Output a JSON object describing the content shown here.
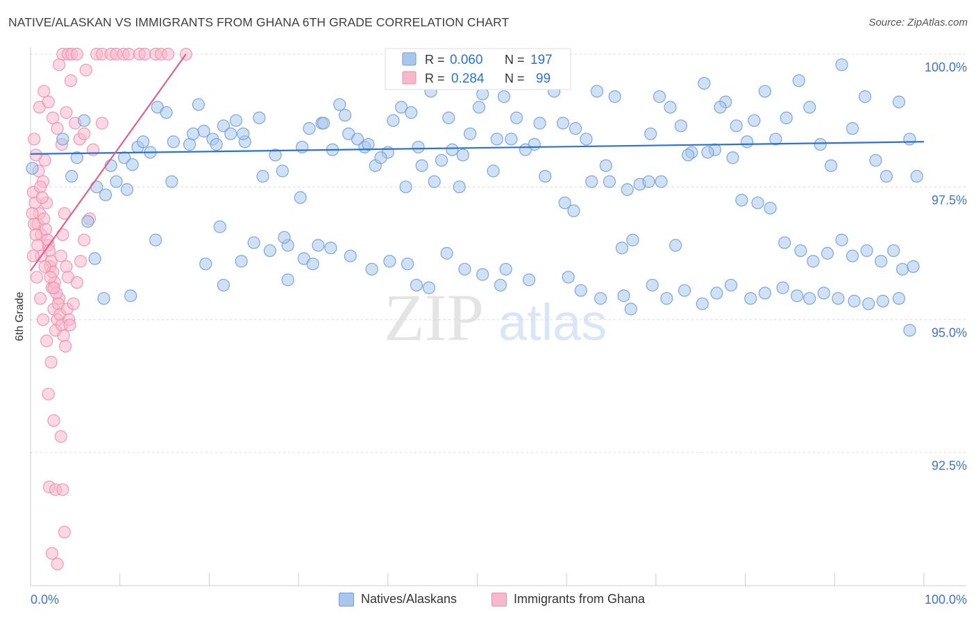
{
  "title": "NATIVE/ALASKAN VS IMMIGRANTS FROM GHANA 6TH GRADE CORRELATION CHART",
  "source": "Source: ZipAtlas.com",
  "watermark": {
    "zip": "ZIP",
    "atlas": "atlas"
  },
  "legend": {
    "r_label": "R =",
    "n_label": "N =",
    "rows": [
      {
        "r": "0.060",
        "n": "197"
      },
      {
        "r": "0.284",
        "n": "99"
      }
    ]
  },
  "bottom_legend": [
    "Natives/Alaskans",
    "Immigrants from Ghana"
  ],
  "colors": {
    "blue_fill": "#a9c6ec",
    "blue_stroke": "#6f9fd8",
    "blue_line": "#2a72d0",
    "pink_fill": "#f7b8cc",
    "pink_stroke": "#ec8fad",
    "pink_line": "#e0608c",
    "tick_label": "#3f74c9",
    "grid": "#d8d8d8",
    "legend_value": "#2a72d0"
  },
  "chart_data": {
    "type": "scatter",
    "title": "NATIVE/ALASKAN VS IMMIGRANTS FROM GHANA 6TH GRADE CORRELATION CHART",
    "xlabel": "",
    "ylabel": "6th Grade",
    "xlim": [
      0,
      100
    ],
    "ylim": [
      90.0,
      100.35
    ],
    "x_tick_labels": [
      "0.0%",
      "100.0%"
    ],
    "y_ticks": [
      100.0,
      97.5,
      95.0,
      92.5
    ],
    "y_tick_labels": [
      "100.0%",
      "97.5%",
      "95.0%",
      "92.5%"
    ],
    "grid": true,
    "series": [
      {
        "name": "Natives/Alaskans",
        "R": 0.06,
        "N": 197,
        "trend": {
          "x": [
            0,
            100
          ],
          "y": [
            98.12,
            98.35
          ]
        },
        "points": [
          [
            0.2,
            97.85
          ],
          [
            6,
            98.75
          ],
          [
            9,
            97.9
          ],
          [
            10.5,
            98.05
          ],
          [
            11.4,
            97.92
          ],
          [
            12,
            98.25
          ],
          [
            12.6,
            98.35
          ],
          [
            14.2,
            99.0
          ],
          [
            15.2,
            98.9
          ],
          [
            16,
            98.35
          ],
          [
            17.8,
            98.3
          ],
          [
            18.8,
            99.05
          ],
          [
            19.4,
            98.55
          ],
          [
            20.4,
            98.4
          ],
          [
            21.6,
            98.65
          ],
          [
            22.4,
            98.5
          ],
          [
            23,
            98.75
          ],
          [
            24,
            98.35
          ],
          [
            25.6,
            98.8
          ],
          [
            27.4,
            98.1
          ],
          [
            28.2,
            97.8
          ],
          [
            30.4,
            98.25
          ],
          [
            31.2,
            98.6
          ],
          [
            32.6,
            98.7
          ],
          [
            34.6,
            99.05
          ],
          [
            35.6,
            98.5
          ],
          [
            36.6,
            98.4
          ],
          [
            37.4,
            98.25
          ],
          [
            38.6,
            97.9
          ],
          [
            40,
            98.15
          ],
          [
            41.5,
            99.0
          ],
          [
            42.6,
            98.9
          ],
          [
            43.4,
            98.25
          ],
          [
            44.8,
            99.3
          ],
          [
            46,
            98.0
          ],
          [
            47.2,
            98.2
          ],
          [
            48,
            97.5
          ],
          [
            49.2,
            98.5
          ],
          [
            50.6,
            99.25
          ],
          [
            51.2,
            99.45
          ],
          [
            52.2,
            98.4
          ],
          [
            53,
            99.2
          ],
          [
            54.4,
            98.8
          ],
          [
            55.2,
            99.7
          ],
          [
            56.4,
            98.3
          ],
          [
            57,
            98.7
          ],
          [
            58.6,
            99.3
          ],
          [
            59.6,
            98.7
          ],
          [
            61,
            98.6
          ],
          [
            62.2,
            98.4
          ],
          [
            63.4,
            99.3
          ],
          [
            64.4,
            97.9
          ],
          [
            65.4,
            99.2
          ],
          [
            66.8,
            97.45
          ],
          [
            68.2,
            97.55
          ],
          [
            69.4,
            98.5
          ],
          [
            70.4,
            99.2
          ],
          [
            71.6,
            99.0
          ],
          [
            72.8,
            98.65
          ],
          [
            74,
            98.15
          ],
          [
            75.4,
            99.45
          ],
          [
            76.6,
            98.2
          ],
          [
            77.8,
            99.1
          ],
          [
            79,
            98.65
          ],
          [
            80.2,
            98.35
          ],
          [
            81,
            98.75
          ],
          [
            82.2,
            99.3
          ],
          [
            83.4,
            98.4
          ],
          [
            84.6,
            98.8
          ],
          [
            86,
            99.5
          ],
          [
            87.2,
            99.0
          ],
          [
            88.4,
            98.3
          ],
          [
            89.6,
            97.9
          ],
          [
            90.8,
            99.8
          ],
          [
            92,
            98.6
          ],
          [
            93.4,
            99.2
          ],
          [
            94.6,
            98.0
          ],
          [
            95.8,
            97.7
          ],
          [
            97.2,
            99.1
          ],
          [
            98.4,
            98.4
          ],
          [
            99.2,
            97.7
          ],
          [
            3.6,
            98.4
          ],
          [
            4.6,
            97.7
          ],
          [
            5.2,
            98.05
          ],
          [
            7.4,
            97.5
          ],
          [
            8.4,
            97.35
          ],
          [
            9.6,
            97.6
          ],
          [
            10.8,
            97.45
          ],
          [
            13.4,
            98.15
          ],
          [
            15.8,
            97.6
          ],
          [
            18.2,
            98.5
          ],
          [
            20.8,
            98.3
          ],
          [
            23.8,
            98.5
          ],
          [
            26,
            97.7
          ],
          [
            28.8,
            96.4
          ],
          [
            30.2,
            97.3
          ],
          [
            32.8,
            98.7
          ],
          [
            33.8,
            98.2
          ],
          [
            35.2,
            98.85
          ],
          [
            37.8,
            98.3
          ],
          [
            39.2,
            98.05
          ],
          [
            40.6,
            98.75
          ],
          [
            42,
            97.5
          ],
          [
            43.8,
            97.9
          ],
          [
            45.2,
            97.6
          ],
          [
            46.8,
            98.8
          ],
          [
            48.4,
            98.1
          ],
          [
            50.2,
            99.0
          ],
          [
            51.8,
            97.8
          ],
          [
            53.8,
            98.4
          ],
          [
            55.4,
            98.2
          ],
          [
            57.6,
            97.7
          ],
          [
            59.8,
            97.2
          ],
          [
            60.8,
            97.05
          ],
          [
            62.8,
            97.6
          ],
          [
            64.8,
            97.6
          ],
          [
            66.2,
            96.35
          ],
          [
            67.4,
            96.5
          ],
          [
            69.2,
            97.6
          ],
          [
            70.6,
            97.6
          ],
          [
            72.2,
            96.4
          ],
          [
            73.6,
            98.1
          ],
          [
            75.8,
            98.15
          ],
          [
            77.2,
            99.0
          ],
          [
            78.6,
            98.05
          ],
          [
            79.6,
            97.25
          ],
          [
            81.4,
            97.2
          ],
          [
            82.8,
            97.1
          ],
          [
            84.4,
            96.45
          ],
          [
            86.2,
            96.3
          ],
          [
            87.6,
            96.1
          ],
          [
            89.2,
            96.25
          ],
          [
            90.8,
            96.5
          ],
          [
            92,
            96.2
          ],
          [
            93.6,
            96.3
          ],
          [
            95.2,
            96.1
          ],
          [
            96.6,
            96.3
          ],
          [
            97.6,
            95.95
          ],
          [
            98.8,
            96.0
          ],
          [
            6.4,
            96.85
          ],
          [
            7.2,
            96.15
          ],
          [
            8.2,
            95.4
          ],
          [
            11.2,
            95.45
          ],
          [
            14,
            96.5
          ],
          [
            19.6,
            96.05
          ],
          [
            21.2,
            96.75
          ],
          [
            23.6,
            96.1
          ],
          [
            25,
            96.45
          ],
          [
            26.8,
            96.3
          ],
          [
            28.4,
            96.55
          ],
          [
            30.6,
            96.15
          ],
          [
            32.2,
            96.4
          ],
          [
            33.6,
            96.35
          ],
          [
            43.2,
            95.65
          ],
          [
            44.6,
            95.6
          ],
          [
            52.6,
            95.65
          ],
          [
            55.8,
            95.75
          ],
          [
            60.2,
            95.8
          ],
          [
            61.6,
            95.55
          ],
          [
            63.8,
            95.4
          ],
          [
            66.4,
            95.45
          ],
          [
            67.2,
            95.2
          ],
          [
            69.6,
            95.65
          ],
          [
            71.2,
            95.4
          ],
          [
            73.2,
            95.55
          ],
          [
            75.2,
            95.3
          ],
          [
            76.8,
            95.5
          ],
          [
            78.4,
            95.65
          ],
          [
            80.6,
            95.4
          ],
          [
            82.2,
            95.5
          ],
          [
            84.2,
            95.6
          ],
          [
            85.8,
            95.45
          ],
          [
            87.2,
            95.4
          ],
          [
            88.8,
            95.5
          ],
          [
            90.4,
            95.4
          ],
          [
            92.2,
            95.35
          ],
          [
            93.8,
            95.3
          ],
          [
            95.4,
            95.35
          ],
          [
            97.2,
            95.4
          ],
          [
            98.4,
            94.8
          ],
          [
            21.6,
            95.65
          ],
          [
            28.8,
            95.75
          ],
          [
            31.6,
            96.05
          ],
          [
            35.8,
            96.2
          ],
          [
            38.2,
            95.95
          ],
          [
            40.2,
            96.1
          ],
          [
            42.2,
            96.05
          ],
          [
            46.6,
            96.25
          ],
          [
            48.6,
            95.95
          ],
          [
            50.6,
            95.85
          ],
          [
            53.2,
            95.95
          ]
        ]
      },
      {
        "name": "Immigrants from Ghana",
        "R": 0.284,
        "N": 99,
        "trend": {
          "x": [
            0,
            17.4
          ],
          "y": [
            95.92,
            100.0
          ]
        },
        "points": [
          [
            0.3,
            97.4
          ],
          [
            0.5,
            97.2
          ],
          [
            0.8,
            96.8
          ],
          [
            1.0,
            97.0
          ],
          [
            1.2,
            96.6
          ],
          [
            1.4,
            97.6
          ],
          [
            1.6,
            98.0
          ],
          [
            1.8,
            97.2
          ],
          [
            2.0,
            96.4
          ],
          [
            2.2,
            96.0
          ],
          [
            2.4,
            95.6
          ],
          [
            2.6,
            95.2
          ],
          [
            2.8,
            94.8
          ],
          [
            3.0,
            95.0
          ],
          [
            3.2,
            95.4
          ],
          [
            3.4,
            96.2
          ],
          [
            3.6,
            96.6
          ],
          [
            3.8,
            97.0
          ],
          [
            4.0,
            96.0
          ],
          [
            4.2,
            95.8
          ],
          [
            0.4,
            98.4
          ],
          [
            0.6,
            98.1
          ],
          [
            0.9,
            97.8
          ],
          [
            1.1,
            97.5
          ],
          [
            1.3,
            97.3
          ],
          [
            1.5,
            96.9
          ],
          [
            1.7,
            96.7
          ],
          [
            1.9,
            96.5
          ],
          [
            2.1,
            96.3
          ],
          [
            2.3,
            96.1
          ],
          [
            2.5,
            95.9
          ],
          [
            2.7,
            95.7
          ],
          [
            2.9,
            95.5
          ],
          [
            3.1,
            95.3
          ],
          [
            3.3,
            95.1
          ],
          [
            3.5,
            94.9
          ],
          [
            3.7,
            94.7
          ],
          [
            3.9,
            94.5
          ],
          [
            4.1,
            95.2
          ],
          [
            4.3,
            95.0
          ],
          [
            1.0,
            99.0
          ],
          [
            1.5,
            99.3
          ],
          [
            2.0,
            99.1
          ],
          [
            2.5,
            98.8
          ],
          [
            3.0,
            98.6
          ],
          [
            3.5,
            98.3
          ],
          [
            4.0,
            98.9
          ],
          [
            4.5,
            99.5
          ],
          [
            5.0,
            98.7
          ],
          [
            5.5,
            98.4
          ],
          [
            6.0,
            98.5
          ],
          [
            7.0,
            98.2
          ],
          [
            8.0,
            98.7
          ],
          [
            3.2,
            99.8
          ],
          [
            3.6,
            100.0
          ],
          [
            4.2,
            100.0
          ],
          [
            4.6,
            100.0
          ],
          [
            5.2,
            100.0
          ],
          [
            6.2,
            99.7
          ],
          [
            7.4,
            100.0
          ],
          [
            8.0,
            100.0
          ],
          [
            9.0,
            100.0
          ],
          [
            9.6,
            100.0
          ],
          [
            10.4,
            100.0
          ],
          [
            11.0,
            100.0
          ],
          [
            12.2,
            100.0
          ],
          [
            12.8,
            100.0
          ],
          [
            14.0,
            100.0
          ],
          [
            14.6,
            100.0
          ],
          [
            15.4,
            100.0
          ],
          [
            17.4,
            100.0
          ],
          [
            2.0,
            93.6
          ],
          [
            2.6,
            93.1
          ],
          [
            3.4,
            92.8
          ],
          [
            2.1,
            91.85
          ],
          [
            2.8,
            91.8
          ],
          [
            3.6,
            91.8
          ],
          [
            2.4,
            90.6
          ],
          [
            3.0,
            90.4
          ],
          [
            3.8,
            91.0
          ],
          [
            0.2,
            97.0
          ],
          [
            0.4,
            96.8
          ],
          [
            0.6,
            96.6
          ],
          [
            0.8,
            96.4
          ],
          [
            1.2,
            96.2
          ],
          [
            1.6,
            96.0
          ],
          [
            2.2,
            95.8
          ],
          [
            2.6,
            95.6
          ],
          [
            0.3,
            96.2
          ],
          [
            0.7,
            95.8
          ],
          [
            1.1,
            95.4
          ],
          [
            1.4,
            95.0
          ],
          [
            1.8,
            94.6
          ],
          [
            2.3,
            94.2
          ],
          [
            4.4,
            94.9
          ],
          [
            4.8,
            95.3
          ],
          [
            5.2,
            95.7
          ],
          [
            5.6,
            96.1
          ],
          [
            6.0,
            96.5
          ],
          [
            6.6,
            96.9
          ]
        ]
      }
    ]
  }
}
